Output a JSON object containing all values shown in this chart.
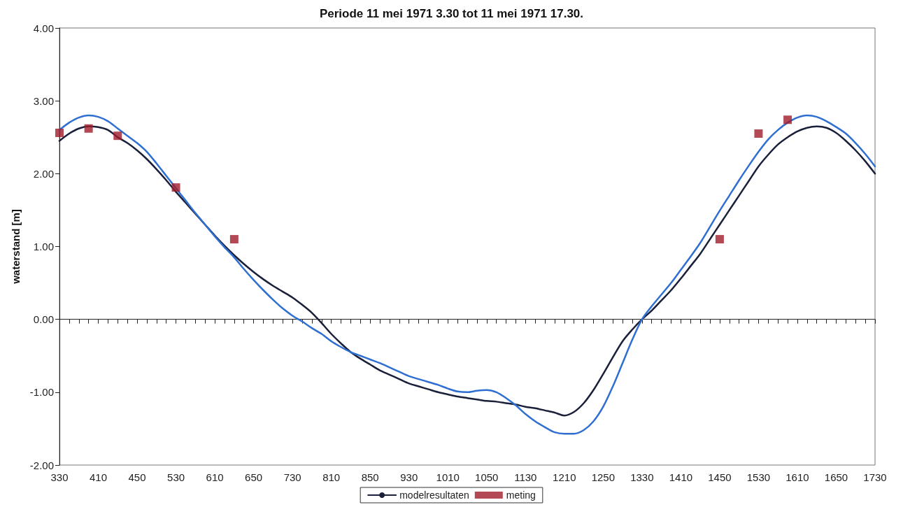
{
  "chart_data": {
    "type": "line",
    "title": "Periode 11 mei 1971 3.30 tot 11 mei 1971 17.30.",
    "ylabel": "waterstand [m]",
    "legend": "bottom",
    "ylim": [
      -2,
      4
    ],
    "yticks": [
      {
        "value": -2,
        "label": "-2.00"
      },
      {
        "value": -1,
        "label": "-1.00"
      },
      {
        "value": 0,
        "label": "0.00"
      },
      {
        "value": 1,
        "label": "1.00"
      },
      {
        "value": 2,
        "label": "2.00"
      },
      {
        "value": 3,
        "label": "3.00"
      },
      {
        "value": 4,
        "label": "4.00"
      }
    ],
    "categories": [
      "330",
      null,
      null,
      null,
      "410",
      null,
      null,
      null,
      "450",
      null,
      null,
      null,
      "530",
      null,
      null,
      null,
      "610",
      null,
      null,
      null,
      "650",
      null,
      null,
      null,
      "730",
      null,
      null,
      null,
      "810",
      null,
      null,
      null,
      "850",
      null,
      null,
      null,
      "930",
      null,
      null,
      null,
      "1010",
      null,
      null,
      null,
      "1050",
      null,
      null,
      null,
      "1130",
      null,
      null,
      null,
      "1210",
      null,
      null,
      null,
      "1250",
      null,
      null,
      null,
      "1330",
      null,
      null,
      null,
      "1410",
      null,
      null,
      null,
      "1450",
      null,
      null,
      null,
      "1530",
      null,
      null,
      null,
      "1610",
      null,
      null,
      null,
      "1650",
      null,
      null,
      null,
      "1730"
    ],
    "series": [
      {
        "name": "modelresultaten",
        "marker": "none",
        "color": "#1a1f3a",
        "values": [
          2.45,
          2.55,
          2.62,
          2.65,
          2.64,
          2.6,
          2.5,
          2.42,
          2.32,
          2.2,
          2.06,
          1.91,
          1.75,
          1.6,
          1.45,
          1.3,
          1.15,
          1.01,
          0.88,
          0.76,
          0.65,
          0.55,
          0.46,
          0.38,
          0.3,
          0.2,
          0.09,
          -0.05,
          -0.2,
          -0.33,
          -0.45,
          -0.54,
          -0.62,
          -0.7,
          -0.76,
          -0.82,
          -0.88,
          -0.92,
          -0.96,
          -1.0,
          -1.03,
          -1.06,
          -1.08,
          -1.1,
          -1.12,
          -1.13,
          -1.15,
          -1.17,
          -1.2,
          -1.22,
          -1.25,
          -1.28,
          -1.32,
          -1.27,
          -1.15,
          -0.97,
          -0.75,
          -0.52,
          -0.3,
          -0.14,
          0.0,
          0.12,
          0.26,
          0.4,
          0.56,
          0.73,
          0.9,
          1.1,
          1.3,
          1.5,
          1.7,
          1.9,
          2.1,
          2.26,
          2.4,
          2.5,
          2.58,
          2.63,
          2.65,
          2.63,
          2.56,
          2.45,
          2.32,
          2.17,
          2.0
        ]
      },
      {
        "name": "meting",
        "type": "scatter",
        "marker": "square",
        "color": "#a01c2a",
        "values": [
          2.56,
          null,
          null,
          2.62,
          null,
          null,
          2.52,
          null,
          null,
          null,
          null,
          null,
          1.81,
          null,
          null,
          null,
          null,
          null,
          1.1,
          null,
          null,
          null,
          null,
          null,
          null,
          null,
          null,
          null,
          null,
          null,
          null,
          null,
          null,
          null,
          null,
          null,
          null,
          null,
          null,
          null,
          null,
          null,
          null,
          null,
          null,
          null,
          null,
          null,
          null,
          null,
          null,
          null,
          null,
          null,
          null,
          null,
          null,
          null,
          null,
          null,
          null,
          null,
          null,
          null,
          null,
          null,
          null,
          null,
          1.1,
          null,
          null,
          null,
          2.55,
          null,
          null,
          2.74,
          null,
          null,
          null,
          null,
          null,
          null,
          null,
          null,
          null
        ]
      },
      {
        "marker": "none",
        "color": "#2f6fd1",
        "values": [
          2.6,
          2.7,
          2.77,
          2.8,
          2.78,
          2.72,
          2.62,
          2.52,
          2.42,
          2.3,
          2.14,
          1.97,
          1.8,
          1.63,
          1.46,
          1.3,
          1.14,
          0.99,
          0.85,
          0.69,
          0.54,
          0.4,
          0.27,
          0.15,
          0.05,
          -0.03,
          -0.12,
          -0.2,
          -0.3,
          -0.38,
          -0.45,
          -0.5,
          -0.55,
          -0.6,
          -0.66,
          -0.72,
          -0.78,
          -0.82,
          -0.86,
          -0.9,
          -0.95,
          -0.99,
          -1.0,
          -0.98,
          -0.97,
          -1.0,
          -1.08,
          -1.18,
          -1.3,
          -1.4,
          -1.48,
          -1.55,
          -1.57,
          -1.57,
          -1.52,
          -1.4,
          -1.2,
          -0.92,
          -0.6,
          -0.28,
          0.0,
          0.18,
          0.34,
          0.5,
          0.68,
          0.86,
          1.05,
          1.27,
          1.49,
          1.7,
          1.91,
          2.11,
          2.3,
          2.47,
          2.6,
          2.7,
          2.77,
          2.8,
          2.78,
          2.72,
          2.64,
          2.55,
          2.42,
          2.27,
          2.1
        ]
      }
    ]
  }
}
